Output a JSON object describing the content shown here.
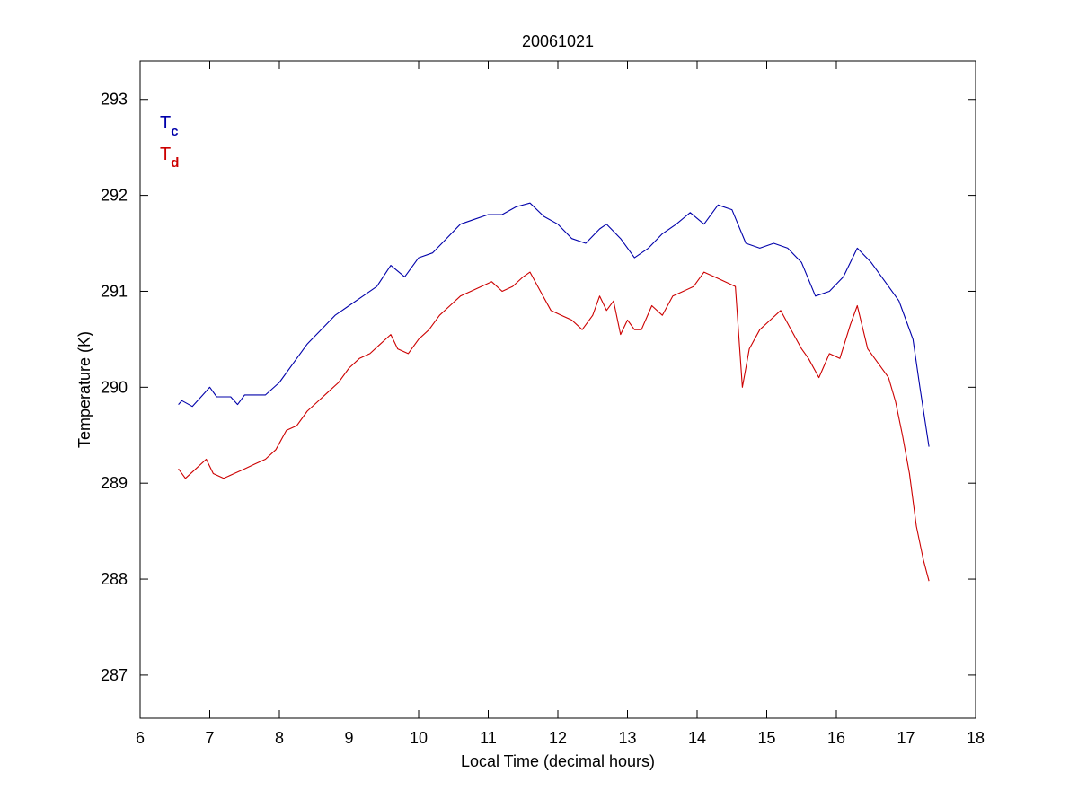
{
  "chart_data": {
    "type": "line",
    "title": "20061021",
    "xlabel": "Local Time (decimal hours)",
    "ylabel": "Temperature (K)",
    "xlim": [
      6,
      18
    ],
    "ylim": [
      286.55,
      293.4
    ],
    "xticks": [
      6,
      7,
      8,
      9,
      10,
      11,
      12,
      13,
      14,
      15,
      16,
      17,
      18
    ],
    "yticks": [
      287,
      288,
      289,
      290,
      291,
      292,
      293
    ],
    "grid": false,
    "legend_position": "top-left",
    "series": [
      {
        "name": "T",
        "subscript": "c",
        "color": "#0000aa",
        "x": [
          6.55,
          6.6,
          6.75,
          6.9,
          7.0,
          7.1,
          7.3,
          7.4,
          7.5,
          7.6,
          7.8,
          8.0,
          8.2,
          8.4,
          8.6,
          8.8,
          9.0,
          9.2,
          9.4,
          9.6,
          9.8,
          10.0,
          10.2,
          10.4,
          10.6,
          10.8,
          11.0,
          11.2,
          11.4,
          11.6,
          11.8,
          12.0,
          12.2,
          12.4,
          12.6,
          12.7,
          12.9,
          13.1,
          13.3,
          13.5,
          13.7,
          13.9,
          14.1,
          14.3,
          14.5,
          14.7,
          14.9,
          15.1,
          15.3,
          15.5,
          15.7,
          15.9,
          16.1,
          16.3,
          16.5,
          16.7,
          16.9,
          17.0,
          17.1,
          17.2,
          17.33
        ],
        "y": [
          289.82,
          289.86,
          289.8,
          289.92,
          290.0,
          289.9,
          289.9,
          289.82,
          289.92,
          289.92,
          289.92,
          290.05,
          290.25,
          290.45,
          290.6,
          290.75,
          290.85,
          290.95,
          291.05,
          291.27,
          291.15,
          291.35,
          291.4,
          291.55,
          291.7,
          291.75,
          291.8,
          291.8,
          291.88,
          291.92,
          291.78,
          291.7,
          291.55,
          291.5,
          291.65,
          291.7,
          291.55,
          291.35,
          291.45,
          291.6,
          291.7,
          291.82,
          291.7,
          291.9,
          291.85,
          291.5,
          291.45,
          291.5,
          291.45,
          291.3,
          290.95,
          291.0,
          291.15,
          291.45,
          291.3,
          291.1,
          290.9,
          290.7,
          290.5,
          290.0,
          289.38
        ]
      },
      {
        "name": "T",
        "subscript": "d",
        "color": "#cc0000",
        "x": [
          6.55,
          6.65,
          6.8,
          6.95,
          7.05,
          7.2,
          7.35,
          7.5,
          7.65,
          7.8,
          7.95,
          8.1,
          8.25,
          8.4,
          8.55,
          8.7,
          8.85,
          9.0,
          9.15,
          9.3,
          9.45,
          9.6,
          9.7,
          9.85,
          10.0,
          10.15,
          10.3,
          10.45,
          10.6,
          10.75,
          10.9,
          11.05,
          11.2,
          11.35,
          11.5,
          11.6,
          11.75,
          11.9,
          12.05,
          12.2,
          12.35,
          12.5,
          12.6,
          12.7,
          12.8,
          12.9,
          13.0,
          13.1,
          13.2,
          13.35,
          13.5,
          13.65,
          13.8,
          13.95,
          14.1,
          14.25,
          14.4,
          14.55,
          14.65,
          14.75,
          14.9,
          15.05,
          15.2,
          15.35,
          15.5,
          15.6,
          15.75,
          15.9,
          16.05,
          16.2,
          16.3,
          16.45,
          16.6,
          16.75,
          16.85,
          16.95,
          17.05,
          17.15,
          17.25,
          17.33
        ],
        "y": [
          289.15,
          289.05,
          289.15,
          289.25,
          289.1,
          289.05,
          289.1,
          289.15,
          289.2,
          289.25,
          289.35,
          289.55,
          289.6,
          289.75,
          289.85,
          289.95,
          290.05,
          290.2,
          290.3,
          290.35,
          290.45,
          290.55,
          290.4,
          290.35,
          290.5,
          290.6,
          290.75,
          290.85,
          290.95,
          291.0,
          291.05,
          291.1,
          291.0,
          291.05,
          291.15,
          291.2,
          291.0,
          290.8,
          290.75,
          290.7,
          290.6,
          290.75,
          290.95,
          290.8,
          290.9,
          290.55,
          290.7,
          290.6,
          290.6,
          290.85,
          290.75,
          290.95,
          291.0,
          291.05,
          291.2,
          291.15,
          291.1,
          291.05,
          290.0,
          290.4,
          290.6,
          290.7,
          290.8,
          290.6,
          290.4,
          290.3,
          290.1,
          290.35,
          290.3,
          290.65,
          290.85,
          290.4,
          290.25,
          290.1,
          289.85,
          289.5,
          289.1,
          288.55,
          288.2,
          287.98
        ]
      }
    ]
  }
}
